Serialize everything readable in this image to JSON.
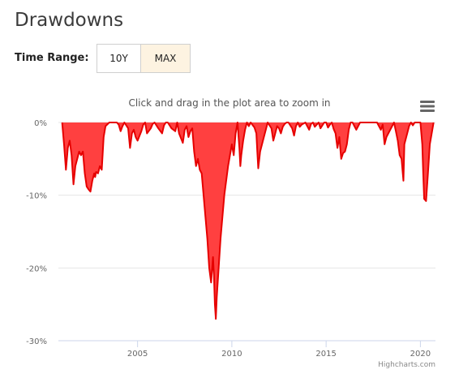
{
  "page": {
    "title": "Drawdowns"
  },
  "time_range": {
    "label": "Time Range:",
    "options": [
      {
        "label": "10Y",
        "active": false
      },
      {
        "label": "MAX",
        "active": true
      }
    ]
  },
  "chart_menu_icon": "hamburger-menu-icon",
  "chart_data": {
    "type": "area",
    "subtitle": "Click and drag in the plot area to zoom in",
    "credits": "Highcharts.com",
    "fill_color": "#ff4040",
    "line_color": "#e60000",
    "x_range": [
      2000.8,
      2020.8
    ],
    "ylim": [
      -30,
      0
    ],
    "y_ticks": [
      0,
      -10,
      -20,
      -30
    ],
    "y_tick_labels": [
      "0%",
      "-10%",
      "-20%",
      "-30%"
    ],
    "x_ticks": [
      2005,
      2010,
      2015,
      2020
    ],
    "x_tick_labels": [
      "2005",
      "2010",
      "2015",
      "2020"
    ],
    "grid": true,
    "legend": "none",
    "series": [
      {
        "x": [
          2001.0,
          2001.1,
          2001.2,
          2001.3,
          2001.4,
          2001.5,
          2001.6,
          2001.7,
          2001.8,
          2001.9,
          2002.0,
          2002.1,
          2002.2,
          2002.3,
          2002.4,
          2002.5,
          2002.6,
          2002.7,
          2002.75,
          2002.8,
          2002.9,
          2003.0,
          2003.1,
          2003.2,
          2003.3,
          2003.5,
          2003.7,
          2003.9,
          2004.0,
          2004.1,
          2004.2,
          2004.3,
          2004.5,
          2004.6,
          2004.7,
          2004.8,
          2004.9,
          2005.0,
          2005.2,
          2005.3,
          2005.4,
          2005.5,
          2005.7,
          2005.8,
          2005.9,
          2006.1,
          2006.3,
          2006.4,
          2006.5,
          2006.6,
          2006.8,
          2007.0,
          2007.1,
          2007.2,
          2007.4,
          2007.5,
          2007.6,
          2007.7,
          2007.8,
          2007.9,
          2008.0,
          2008.1,
          2008.2,
          2008.3,
          2008.4,
          2008.5,
          2008.6,
          2008.7,
          2008.8,
          2008.9,
          2009.0,
          2009.05,
          2009.1,
          2009.15,
          2009.2,
          2009.3,
          2009.4,
          2009.5,
          2009.6,
          2009.7,
          2009.8,
          2009.9,
          2010.0,
          2010.1,
          2010.2,
          2010.3,
          2010.4,
          2010.45,
          2010.5,
          2010.6,
          2010.7,
          2010.8,
          2010.9,
          2011.0,
          2011.2,
          2011.3,
          2011.35,
          2011.4,
          2011.5,
          2011.6,
          2011.7,
          2011.8,
          2011.9,
          2012.1,
          2012.2,
          2012.3,
          2012.4,
          2012.5,
          2012.6,
          2012.7,
          2012.8,
          2012.9,
          2013.0,
          2013.2,
          2013.3,
          2013.4,
          2013.5,
          2013.6,
          2013.7,
          2013.9,
          2014.0,
          2014.1,
          2014.2,
          2014.3,
          2014.4,
          2014.5,
          2014.6,
          2014.7,
          2014.8,
          2014.9,
          2015.0,
          2015.1,
          2015.2,
          2015.3,
          2015.4,
          2015.5,
          2015.6,
          2015.7,
          2015.8,
          2015.9,
          2016.0,
          2016.1,
          2016.2,
          2016.3,
          2016.4,
          2016.5,
          2016.6,
          2016.7,
          2016.8,
          2016.9,
          2017.1,
          2017.3,
          2017.5,
          2017.7,
          2017.9,
          2018.0,
          2018.1,
          2018.2,
          2018.3,
          2018.5,
          2018.6,
          2018.7,
          2018.8,
          2018.9,
          2019.0,
          2019.1,
          2019.15,
          2019.2,
          2019.3,
          2019.4,
          2019.5,
          2019.6,
          2019.7,
          2019.8,
          2019.9,
          2020.0,
          2020.1,
          2020.15,
          2020.2,
          2020.3,
          2020.4,
          2020.5,
          2020.6,
          2020.7
        ],
        "y": [
          0,
          -3.0,
          -6.5,
          -3.5,
          -2.5,
          -4.5,
          -8.5,
          -6.0,
          -5.0,
          -4.0,
          -4.5,
          -4.0,
          -7.0,
          -8.8,
          -9.2,
          -9.5,
          -8.0,
          -7.0,
          -7.5,
          -6.8,
          -7.0,
          -6.0,
          -6.5,
          -2.0,
          -0.5,
          0,
          0,
          0,
          -0.3,
          -1.2,
          -0.5,
          0,
          -0.8,
          -3.5,
          -1.5,
          -1.0,
          -2.0,
          -2.5,
          -1.2,
          -0.3,
          0,
          -1.5,
          -0.8,
          -0.2,
          0,
          -0.8,
          -1.5,
          -0.4,
          0,
          0,
          -0.8,
          -1.2,
          0,
          -1.5,
          -2.8,
          -1.0,
          -0.5,
          -2.0,
          -1.2,
          -0.8,
          -4.0,
          -6.0,
          -5.0,
          -6.5,
          -7.0,
          -10.0,
          -13.0,
          -16.0,
          -20.0,
          -22.0,
          -18.5,
          -21.0,
          -25.0,
          -27.0,
          -24.0,
          -20.0,
          -16.0,
          -13.0,
          -10.0,
          -8.0,
          -6.0,
          -4.5,
          -3.0,
          -4.5,
          -1.5,
          0,
          -3.5,
          -6.0,
          -4.5,
          -2.5,
          -1.0,
          0,
          -0.5,
          0,
          -0.7,
          -1.5,
          -4.0,
          -6.3,
          -4.0,
          -3.0,
          -2.0,
          -1.0,
          0,
          -0.8,
          -2.5,
          -1.5,
          -0.5,
          -0.8,
          -1.5,
          -0.6,
          -0.2,
          0,
          0,
          -0.8,
          -1.8,
          -0.5,
          0,
          -0.6,
          -0.3,
          0,
          -0.5,
          -1.0,
          -0.2,
          0,
          -0.6,
          -0.3,
          0,
          -0.8,
          -0.4,
          0,
          0,
          -0.7,
          -0.3,
          0,
          -0.9,
          -1.5,
          -3.5,
          -2.0,
          -5.0,
          -4.2,
          -4.0,
          -3.0,
          -1.0,
          0,
          0,
          -0.5,
          -1.0,
          -0.5,
          0,
          0,
          0,
          0,
          0,
          0,
          -1.0,
          -0.3,
          -3.0,
          -2.0,
          -1.5,
          -0.5,
          0,
          -1.2,
          -2.5,
          -4.5,
          -5.0,
          -8.0,
          -3.0,
          -2.5,
          -1.5,
          -0.5,
          0,
          -0.4,
          0,
          0,
          0,
          0,
          -3.0,
          -7.0,
          -10.5,
          -10.8,
          -7.0,
          -3.0,
          -1.5,
          0
        ]
      }
    ]
  }
}
